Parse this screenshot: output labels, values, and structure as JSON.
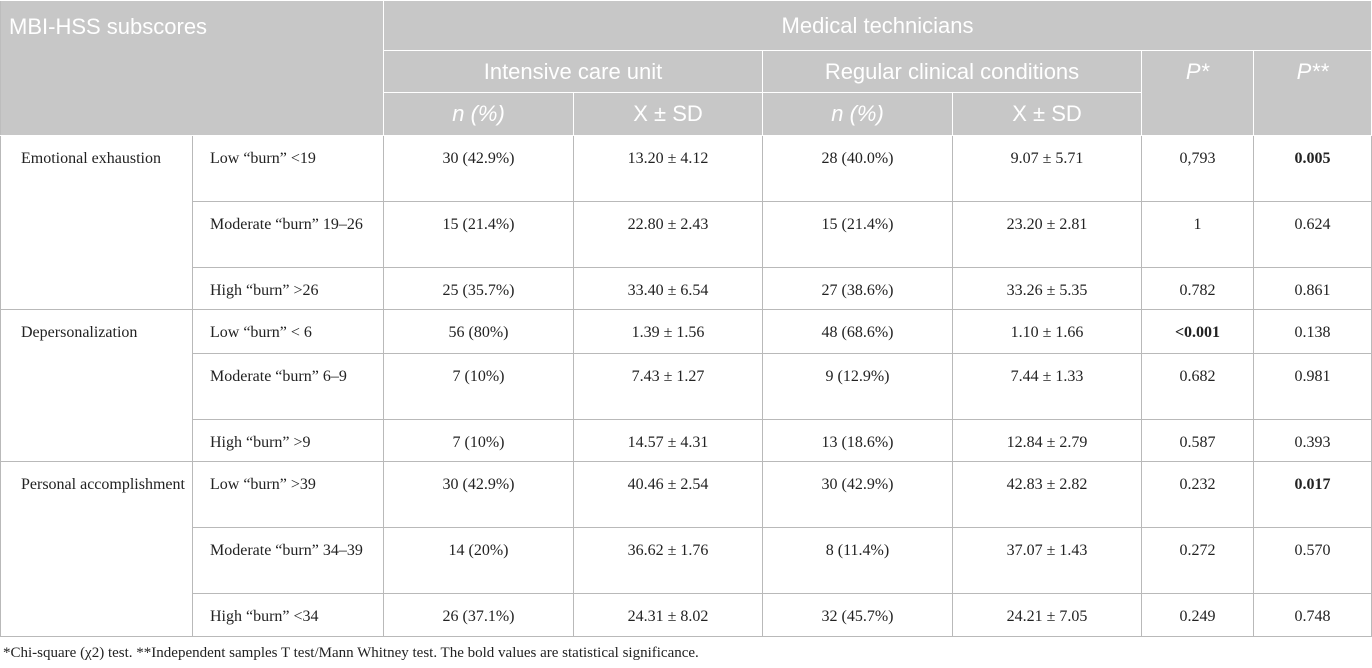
{
  "header": {
    "subscores": "MBI-HSS subscores",
    "group": "Medical technicians",
    "icu": "Intensive care unit",
    "regular": "Regular clinical conditions",
    "p1": "P*",
    "p2": "P**",
    "icu_n": "n (%)",
    "icu_mean": "X ± SD",
    "reg_n": "n (%)",
    "reg_mean": "X ± SD"
  },
  "groups": [
    {
      "name": "Emotional exhaustion",
      "rows": [
        {
          "level": "Low “burn” <19",
          "icu_n": "30 (42.9%)",
          "icu_mean": "13.20 ± 4.12",
          "reg_n": "28 (40.0%)",
          "reg_mean": "9.07 ± 5.71",
          "p1": "0,793",
          "p2": "0.005"
        },
        {
          "level": "Moderate “burn” 19–26",
          "icu_n": "15 (21.4%)",
          "icu_mean": "22.80 ± 2.43",
          "reg_n": "15 (21.4%)",
          "reg_mean": "23.20 ± 2.81",
          "p1": "1",
          "p2": "0.624"
        },
        {
          "level": "High “burn” >26",
          "icu_n": "25 (35.7%)",
          "icu_mean": "33.40 ± 6.54",
          "reg_n": "27 (38.6%)",
          "reg_mean": "33.26 ± 5.35",
          "p1": "0.782",
          "p2": "0.861"
        }
      ]
    },
    {
      "name": "Depersonalization",
      "rows": [
        {
          "level": "Low “burn” < 6",
          "icu_n": "56 (80%)",
          "icu_mean": "1.39 ± 1.56",
          "reg_n": "48 (68.6%)",
          "reg_mean": "1.10 ± 1.66",
          "p1": "<0.001",
          "p2": "0.138"
        },
        {
          "level": "Moderate “burn” 6–9",
          "icu_n": "7 (10%)",
          "icu_mean": "7.43 ± 1.27",
          "reg_n": "9 (12.9%)",
          "reg_mean": "7.44 ± 1.33",
          "p1": "0.682",
          "p2": "0.981"
        },
        {
          "level": "High “burn” >9",
          "icu_n": "7 (10%)",
          "icu_mean": "14.57 ± 4.31",
          "reg_n": "13 (18.6%)",
          "reg_mean": "12.84 ± 2.79",
          "p1": "0.587",
          "p2": "0.393"
        }
      ]
    },
    {
      "name": "Personal accomplishment",
      "rows": [
        {
          "level": "Low “burn” >39",
          "icu_n": "30 (42.9%)",
          "icu_mean": "40.46 ± 2.54",
          "reg_n": "30 (42.9%)",
          "reg_mean": "42.83 ± 2.82",
          "p1": "0.232",
          "p2": "0.017"
        },
        {
          "level": "Moderate “burn” 34–39",
          "icu_n": "14 (20%)",
          "icu_mean": "36.62 ± 1.76",
          "reg_n": "8 (11.4%)",
          "reg_mean": "37.07 ± 1.43",
          "p1": "0.272",
          "p2": "0.570"
        },
        {
          "level": "High “burn” <34",
          "icu_n": "26 (37.1%)",
          "icu_mean": "24.31 ± 8.02",
          "reg_n": "32 (45.7%)",
          "reg_mean": "24.21 ± 7.05",
          "p1": "0.249",
          "p2": "0.748"
        }
      ]
    }
  ],
  "footnote": "*Chi-square (χ2) test. **Independent samples T test/Mann Whitney test. The bold values are statistical significance."
}
